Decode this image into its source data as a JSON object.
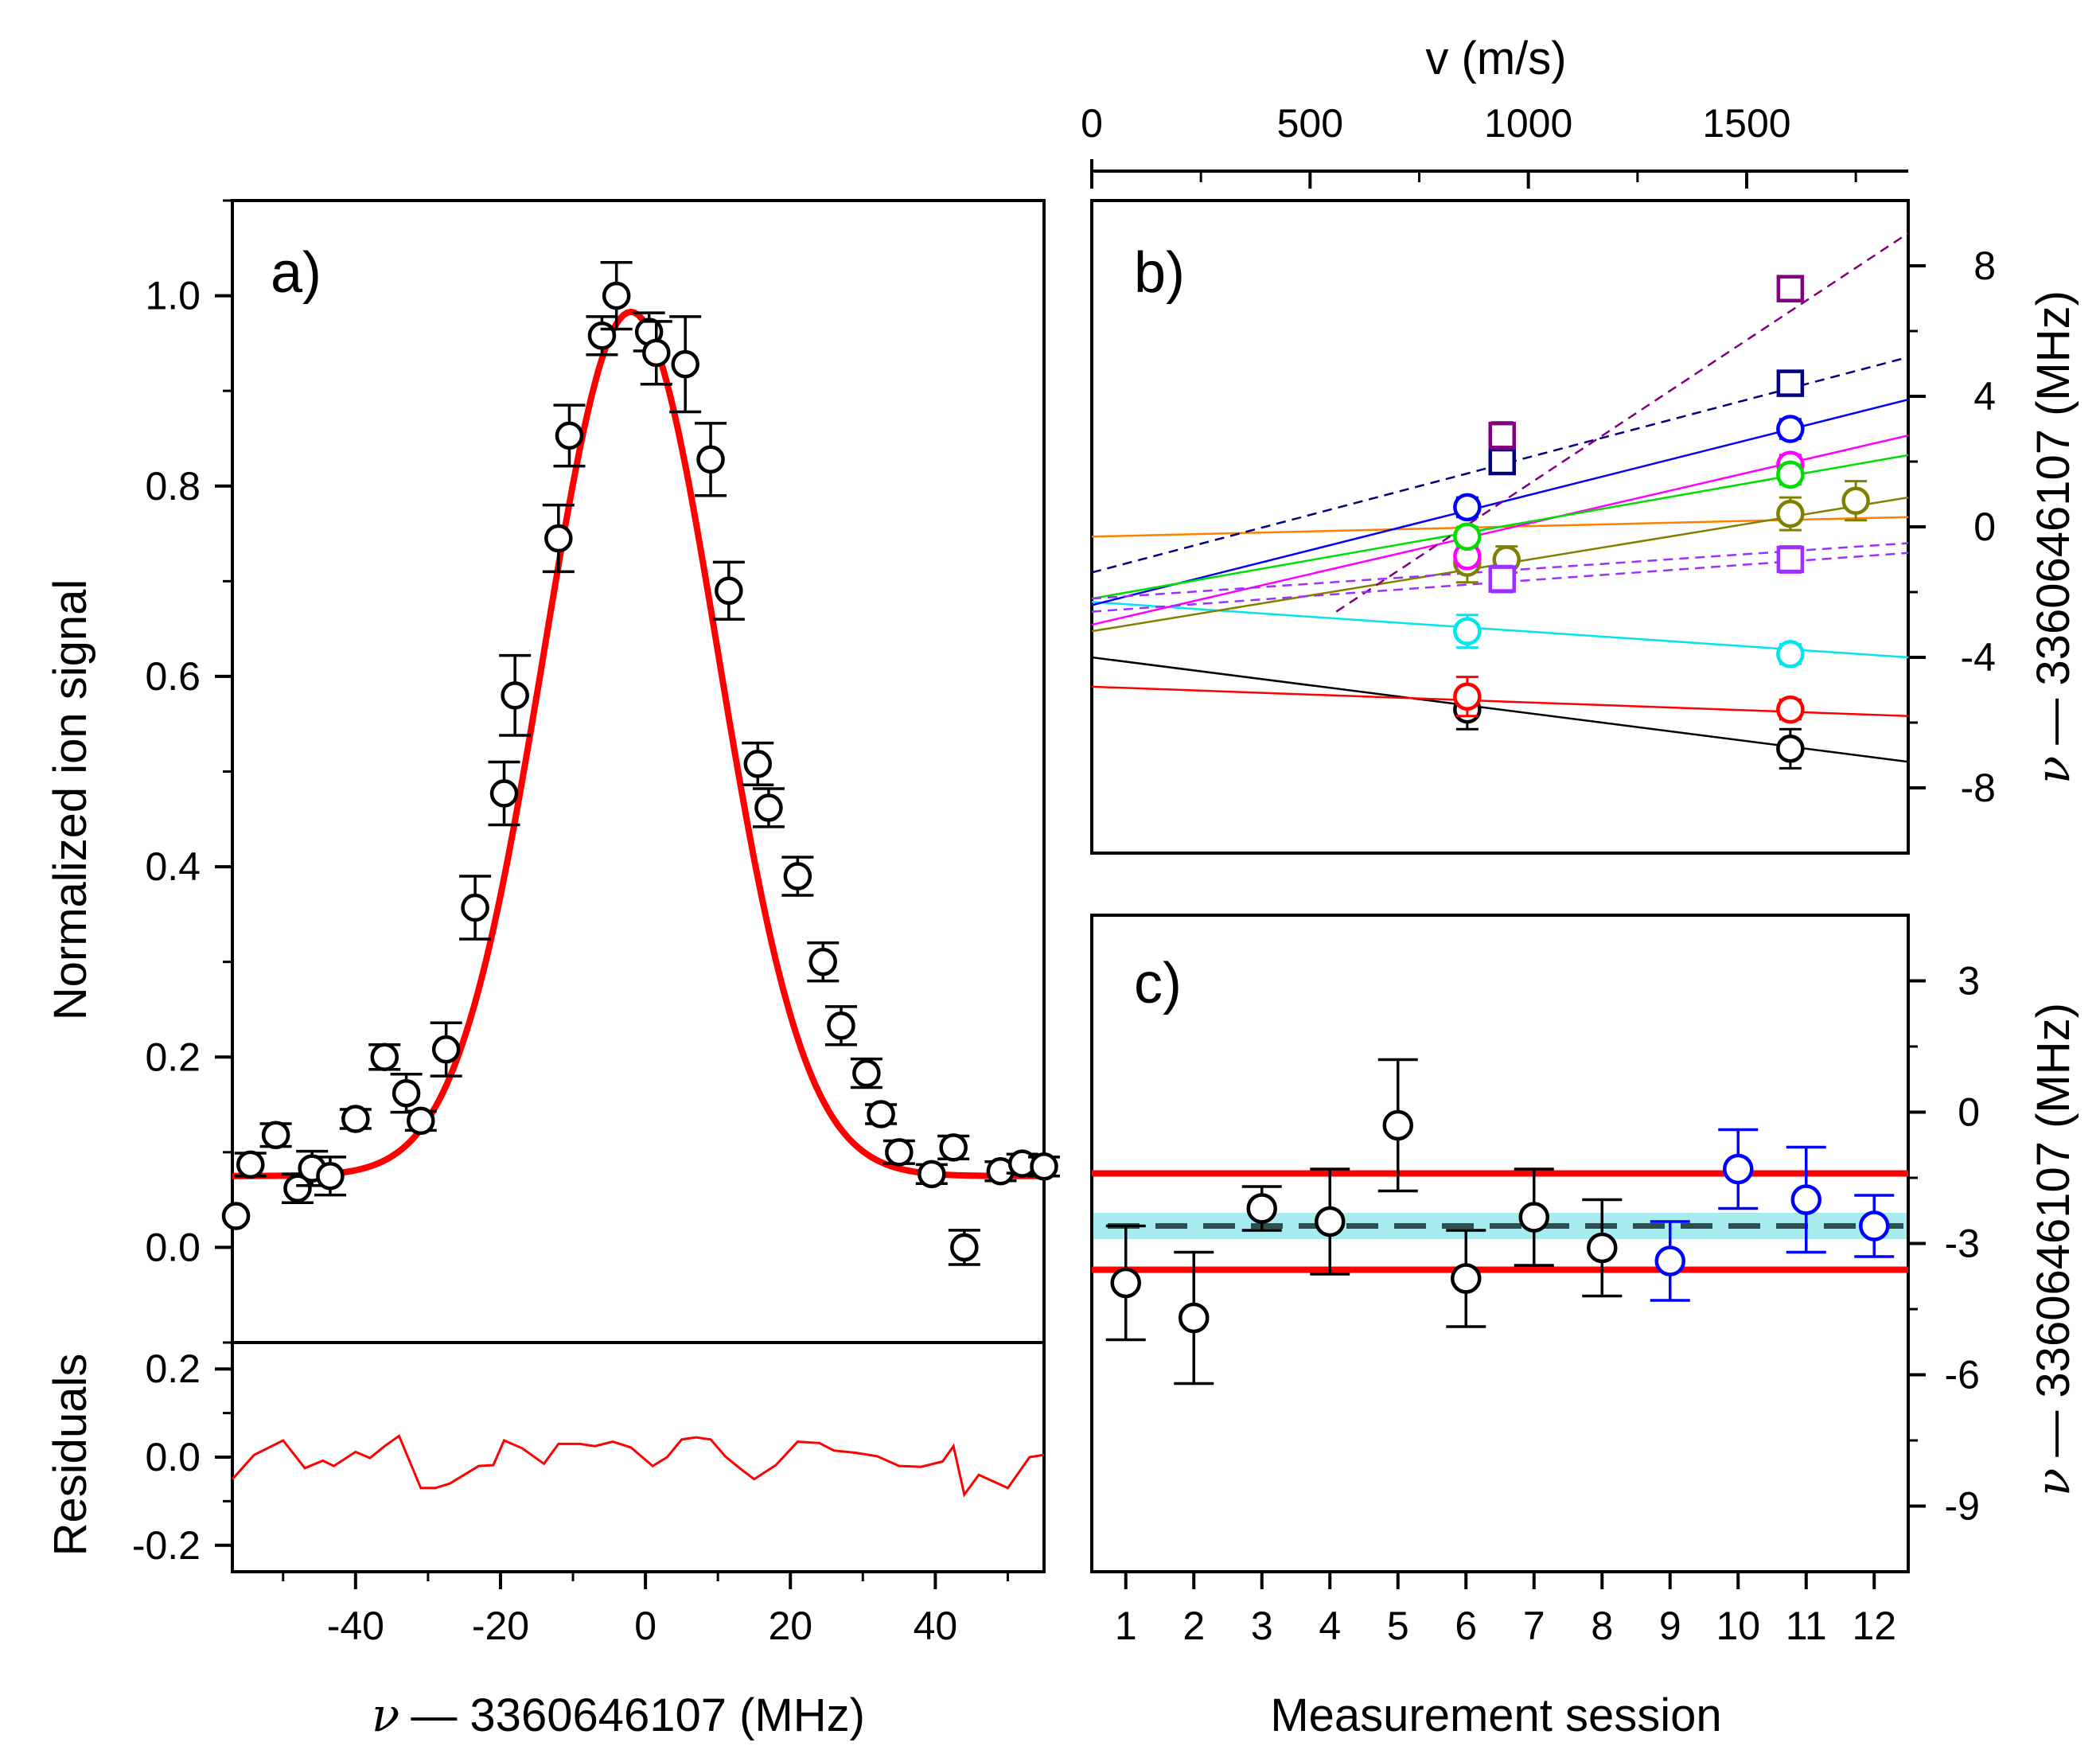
{
  "chart_data": [
    {
      "id": "a",
      "type": "scatter",
      "panel_label": "a)",
      "xlabel": "ν — 3360646107 (MHz)",
      "xlabel_symbol": "ν",
      "xlabel_rest": "— 3360646107 (MHz)",
      "ylabel": "Normalized ion signal",
      "xlim": [
        -57,
        55
      ],
      "ylim": [
        -0.1,
        1.1
      ],
      "x_ticks": [
        -40,
        -20,
        0,
        20,
        40
      ],
      "x_tick_labels": [
        "-40",
        "-20",
        "0",
        "20",
        "40"
      ],
      "y_ticks": [
        0.0,
        0.2,
        0.4,
        0.6,
        0.8,
        1.0
      ],
      "y_tick_labels": [
        "0.0",
        "0.2",
        "0.4",
        "0.6",
        "0.8",
        "1.0"
      ],
      "series": [
        {
          "name": "data",
          "marker": "open-circle",
          "color": "#000000",
          "points": [
            {
              "x": -56.5,
              "y": 0.033,
              "err": 0.0
            },
            {
              "x": -54.5,
              "y": 0.087,
              "err": 0.012
            },
            {
              "x": -51.0,
              "y": 0.118,
              "err": 0.012
            },
            {
              "x": -48.0,
              "y": 0.062,
              "err": 0.015
            },
            {
              "x": -46.0,
              "y": 0.083,
              "err": 0.018
            },
            {
              "x": -43.5,
              "y": 0.075,
              "err": 0.02
            },
            {
              "x": -40.0,
              "y": 0.135,
              "err": 0.01
            },
            {
              "x": -36.0,
              "y": 0.2,
              "err": 0.013
            },
            {
              "x": -33.0,
              "y": 0.162,
              "err": 0.02
            },
            {
              "x": -31.0,
              "y": 0.133,
              "err": 0.01
            },
            {
              "x": -27.5,
              "y": 0.208,
              "err": 0.028
            },
            {
              "x": -23.5,
              "y": 0.357,
              "err": 0.033
            },
            {
              "x": -19.5,
              "y": 0.477,
              "err": 0.033
            },
            {
              "x": -18.0,
              "y": 0.58,
              "err": 0.042
            },
            {
              "x": -12.0,
              "y": 0.745,
              "err": 0.035
            },
            {
              "x": -10.5,
              "y": 0.853,
              "err": 0.032
            },
            {
              "x": -6.0,
              "y": 0.958,
              "err": 0.02
            },
            {
              "x": -4.0,
              "y": 1.0,
              "err": 0.035
            },
            {
              "x": 0.5,
              "y": 0.962,
              "err": 0.02
            },
            {
              "x": 1.5,
              "y": 0.94,
              "err": 0.033
            },
            {
              "x": 5.5,
              "y": 0.928,
              "err": 0.05
            },
            {
              "x": 9.0,
              "y": 0.828,
              "err": 0.038
            },
            {
              "x": 11.5,
              "y": 0.69,
              "err": 0.03
            },
            {
              "x": 15.5,
              "y": 0.508,
              "err": 0.022
            },
            {
              "x": 17.0,
              "y": 0.462,
              "err": 0.02
            },
            {
              "x": 21.0,
              "y": 0.39,
              "err": 0.02
            },
            {
              "x": 24.5,
              "y": 0.3,
              "err": 0.02
            },
            {
              "x": 27.0,
              "y": 0.233,
              "err": 0.02
            },
            {
              "x": 30.5,
              "y": 0.183,
              "err": 0.015
            },
            {
              "x": 32.5,
              "y": 0.14,
              "err": 0.01
            },
            {
              "x": 35.0,
              "y": 0.1,
              "err": 0.012
            },
            {
              "x": 39.5,
              "y": 0.077,
              "err": 0.01
            },
            {
              "x": 42.5,
              "y": 0.105,
              "err": 0.012
            },
            {
              "x": 44.0,
              "y": 0.0,
              "err": 0.018
            },
            {
              "x": 49.0,
              "y": 0.08,
              "err": 0.01
            },
            {
              "x": 52.0,
              "y": 0.088,
              "err": 0.01
            },
            {
              "x": 55.0,
              "y": 0.085,
              "err": 0.01
            }
          ]
        },
        {
          "name": "fit",
          "marker": "line",
          "color": "#ff0000",
          "model": "gaussian",
          "offset": 0.075,
          "amplitude": 0.908,
          "center": -2.0,
          "sigma": 12.0,
          "x_range": [
            -57,
            55
          ]
        }
      ]
    },
    {
      "id": "a-residuals",
      "type": "line",
      "ylabel": "Residuals",
      "xlim": [
        -57,
        55
      ],
      "ylim": [
        -0.26,
        0.26
      ],
      "y_ticks": [
        -0.2,
        0.0,
        0.2
      ],
      "y_tick_labels": [
        "-0.2",
        "0.0",
        "0.2"
      ],
      "color": "#ff0000",
      "x": [
        -57,
        -54,
        -50,
        -47,
        -44.5,
        -43,
        -40,
        -38,
        -36,
        -34,
        -31,
        -29,
        -27,
        -23,
        -21,
        -19.5,
        -17,
        -14,
        -12,
        -9,
        -7,
        -4.5,
        -2,
        1,
        3,
        5,
        7,
        9,
        11,
        13,
        15,
        18,
        21,
        24,
        26,
        29,
        32,
        35,
        38,
        41,
        42.5,
        44,
        46,
        50,
        53,
        55
      ],
      "values": [
        -0.05,
        0.005,
        0.038,
        -0.025,
        -0.008,
        -0.02,
        0.012,
        -0.002,
        0.025,
        0.048,
        -0.07,
        -0.07,
        -0.06,
        -0.02,
        -0.018,
        0.038,
        0.02,
        -0.015,
        0.03,
        0.03,
        0.025,
        0.035,
        0.022,
        -0.02,
        0.0,
        0.04,
        0.045,
        0.04,
        0.002,
        -0.025,
        -0.05,
        -0.018,
        0.035,
        0.032,
        0.015,
        0.01,
        0.002,
        -0.02,
        -0.022,
        -0.01,
        0.025,
        -0.085,
        -0.04,
        -0.07,
        0.0,
        0.005
      ]
    },
    {
      "id": "b",
      "type": "scatter",
      "panel_label": "b)",
      "xlabel_top": "v (m/s)",
      "xlim": [
        0,
        1870
      ],
      "ylim": [
        -10,
        10
      ],
      "x_ticks": [
        0,
        500,
        1000,
        1500
      ],
      "x_tick_labels": [
        "0",
        "500",
        "1000",
        "1500"
      ],
      "y_ticks": [
        8,
        4,
        0,
        -4,
        -8
      ],
      "y_tick_labels": [
        "8",
        "4",
        "0",
        "-4",
        "-8"
      ],
      "ylabel_right": "ν — 3360646107 (MHz)",
      "ylabel_right_symbol": "ν",
      "ylabel_right_rest": "— 3360646107 (MHz)",
      "series": [
        {
          "name": "black",
          "color": "#000000",
          "marker": "circle",
          "line": "solid",
          "fit": [
            [
              0,
              -4.0
            ],
            [
              1870,
              -7.2
            ]
          ],
          "points": [
            {
              "x": 860,
              "y": -5.6,
              "err": 0.6
            },
            {
              "x": 1600,
              "y": -6.8,
              "err": 0.6
            }
          ]
        },
        {
          "name": "red",
          "color": "#ff0000",
          "marker": "circle",
          "line": "solid",
          "fit": [
            [
              0,
              -4.9
            ],
            [
              1870,
              -5.8
            ]
          ],
          "points": [
            {
              "x": 860,
              "y": -5.2,
              "err": 0.6
            },
            {
              "x": 1600,
              "y": -5.6,
              "err": 0.3
            }
          ]
        },
        {
          "name": "cyan",
          "color": "#00e5ee",
          "marker": "circle",
          "line": "solid",
          "fit": [
            [
              0,
              -2.3
            ],
            [
              1870,
              -4.0
            ]
          ],
          "points": [
            {
              "x": 860,
              "y": -3.2,
              "err": 0.5
            },
            {
              "x": 1600,
              "y": -3.9,
              "err": 0.3
            }
          ]
        },
        {
          "name": "orange",
          "color": "#ff8000",
          "marker": "none",
          "line": "solid",
          "fit": [
            [
              0,
              -0.3
            ],
            [
              1870,
              0.3
            ]
          ],
          "points": []
        },
        {
          "name": "olive",
          "color": "#808000",
          "marker": "circle",
          "line": "solid",
          "fit": [
            [
              0,
              -3.2
            ],
            [
              1870,
              0.9
            ]
          ],
          "points": [
            {
              "x": 860,
              "y": -1.1,
              "err": 0.6
            },
            {
              "x": 950,
              "y": -1.0,
              "err": 0.4
            },
            {
              "x": 1600,
              "y": 0.4,
              "err": 0.5
            },
            {
              "x": 1750,
              "y": 0.8,
              "err": 0.6
            }
          ]
        },
        {
          "name": "blue",
          "color": "#0000ff",
          "marker": "circle",
          "line": "solid",
          "fit": [
            [
              0,
              -2.4
            ],
            [
              1870,
              3.9
            ]
          ],
          "points": [
            {
              "x": 860,
              "y": 0.6,
              "err": 0.3
            },
            {
              "x": 1600,
              "y": 3.0,
              "err": 0.3
            }
          ]
        },
        {
          "name": "magenta",
          "color": "#ff00ff",
          "marker": "circle",
          "line": "solid",
          "fit": [
            [
              0,
              -3.0
            ],
            [
              1870,
              2.8
            ]
          ],
          "points": [
            {
              "x": 860,
              "y": -0.9,
              "err": 0.3
            },
            {
              "x": 1600,
              "y": 1.9,
              "err": 0.3
            }
          ]
        },
        {
          "name": "green",
          "color": "#00dd00",
          "marker": "circle",
          "line": "solid",
          "fit": [
            [
              0,
              -2.2
            ],
            [
              1870,
              2.2
            ]
          ],
          "points": [
            {
              "x": 860,
              "y": -0.3,
              "err": 0.3
            },
            {
              "x": 1600,
              "y": 1.6,
              "err": 0.3
            }
          ]
        },
        {
          "name": "sq-navy",
          "color": "#000080",
          "marker": "square",
          "line": "dashed",
          "fit": [
            [
              0,
              -1.4
            ],
            [
              1870,
              5.2
            ]
          ],
          "points": [
            {
              "x": 940,
              "y": 2.0,
              "err": 0.3
            },
            {
              "x": 1600,
              "y": 4.4,
              "err": 0.3
            }
          ]
        },
        {
          "name": "sq-purple",
          "color": "#800080",
          "marker": "square",
          "line": "dashed",
          "fit": [
            [
              560,
              -2.6
            ],
            [
              1870,
              9.0
            ]
          ],
          "points": [
            {
              "x": 940,
              "y": 2.8,
              "err": 0.4
            },
            {
              "x": 1600,
              "y": 7.3,
              "err": 0.3
            }
          ]
        },
        {
          "name": "sq-violet",
          "color": "#9b30ff",
          "marker": "square",
          "line": "dashed",
          "fit": [
            [
              0,
              -2.2
            ],
            [
              1870,
              -0.5
            ]
          ],
          "points": [
            {
              "x": 940,
              "y": -1.6,
              "err": 0.4
            },
            {
              "x": 1600,
              "y": -1.0,
              "err": 0.4
            }
          ]
        },
        {
          "name": "sq-violet-2",
          "color": "#9b30ff",
          "marker": "none",
          "line": "dashed",
          "fit": [
            [
              0,
              -2.6
            ],
            [
              1870,
              -0.8
            ]
          ],
          "points": []
        }
      ]
    },
    {
      "id": "c",
      "type": "scatter",
      "panel_label": "c)",
      "xlabel": "Measurement session",
      "xlim": [
        0.5,
        12.5
      ],
      "ylim": [
        -10.5,
        4.5
      ],
      "x_ticks": [
        1,
        2,
        3,
        4,
        5,
        6,
        7,
        8,
        9,
        10,
        11,
        12
      ],
      "x_tick_labels": [
        "1",
        "2",
        "3",
        "4",
        "5",
        "6",
        "7",
        "8",
        "9",
        "10",
        "11",
        "12"
      ],
      "y_ticks": [
        3,
        0,
        -3,
        -6,
        -9
      ],
      "y_tick_labels": [
        "3",
        "0",
        "-3",
        "-6",
        "-9"
      ],
      "ylabel_right": "ν — 3360646107 (MHz)",
      "ylabel_right_symbol": "ν",
      "ylabel_right_rest": "— 3360646107 (MHz)",
      "mean": -2.6,
      "mean_band": [
        -2.9,
        -2.3
      ],
      "limits": [
        -1.4,
        -3.6
      ],
      "mean_line_color": "#2f4f4f",
      "band_color": "#a8ecf0",
      "limit_color": "#ff0000",
      "series": [
        {
          "name": "session",
          "color": "#000000",
          "points": [
            {
              "x": 1,
              "y": -3.9,
              "err": 1.3
            },
            {
              "x": 2,
              "y": -4.7,
              "err": 1.5
            },
            {
              "x": 3,
              "y": -2.2,
              "err": 0.5
            },
            {
              "x": 4,
              "y": -2.5,
              "err": 1.2
            },
            {
              "x": 5,
              "y": -0.3,
              "err": 1.5
            },
            {
              "x": 6,
              "y": -3.8,
              "err": 1.1
            },
            {
              "x": 7,
              "y": -2.4,
              "err": 1.1
            },
            {
              "x": 8,
              "y": -3.1,
              "err": 1.1
            }
          ]
        },
        {
          "name": "session-blue",
          "color": "#0000ff",
          "points": [
            {
              "x": 9,
              "y": -3.4,
              "err": 0.9
            },
            {
              "x": 10,
              "y": -1.3,
              "err": 0.9
            },
            {
              "x": 11,
              "y": -2.0,
              "err": 1.2
            },
            {
              "x": 12,
              "y": -2.6,
              "err": 0.7
            }
          ]
        }
      ]
    }
  ]
}
